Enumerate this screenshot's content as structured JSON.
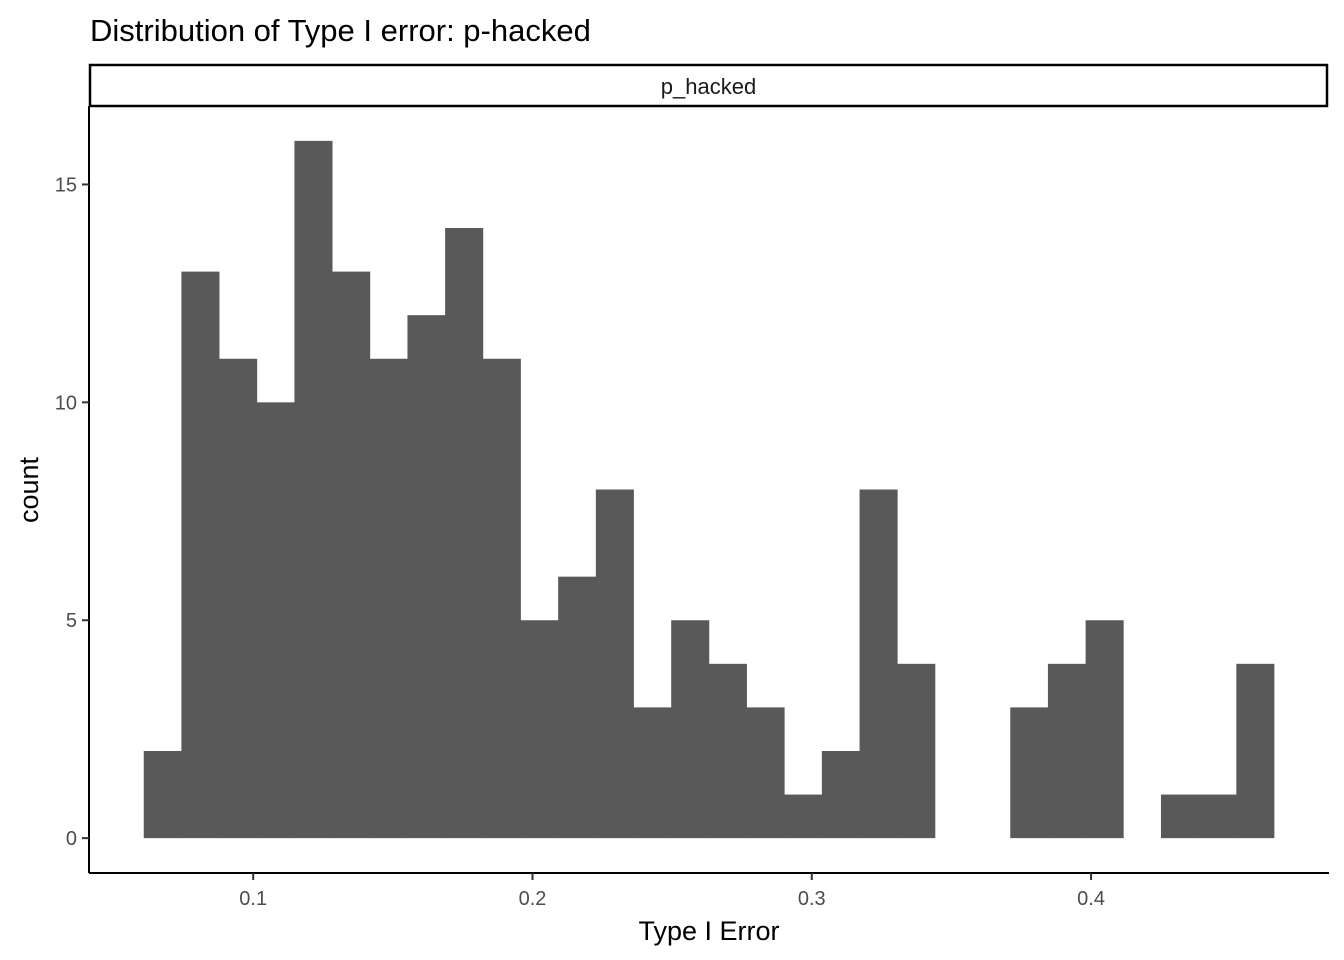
{
  "chart_data": {
    "type": "bar",
    "title": "Distribution of Type I error: p-hacked",
    "facet_label": "p_hacked",
    "xlabel": "Type I Error",
    "ylabel": "count",
    "bin_width": 0.01349,
    "first_bin_left": 0.0608,
    "counts": [
      2,
      13,
      11,
      10,
      16,
      13,
      11,
      12,
      14,
      11,
      5,
      6,
      8,
      3,
      5,
      4,
      3,
      1,
      2,
      8,
      4,
      0,
      0,
      3,
      4,
      5,
      0,
      1,
      1,
      4
    ],
    "x_ticks": [
      {
        "value": 0.1,
        "label": "0.1"
      },
      {
        "value": 0.2,
        "label": "0.2"
      },
      {
        "value": 0.3,
        "label": "0.3"
      },
      {
        "value": 0.4,
        "label": "0.4"
      }
    ],
    "y_ticks": [
      {
        "value": 0,
        "label": "0"
      },
      {
        "value": 5,
        "label": "5"
      },
      {
        "value": 10,
        "label": "10"
      },
      {
        "value": 15,
        "label": "15"
      }
    ],
    "xlim": [
      0.0412,
      0.4852
    ],
    "ylim": [
      -0.8,
      16.8
    ],
    "bar_color": "#595959",
    "grid": false,
    "legend": "none"
  }
}
